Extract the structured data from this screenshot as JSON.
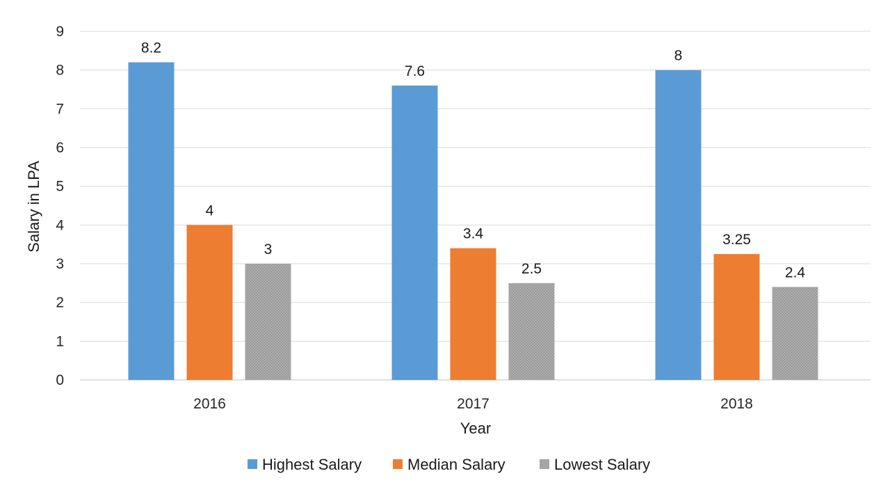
{
  "chart_data": {
    "type": "bar",
    "categories": [
      "2016",
      "2017",
      "2018"
    ],
    "series": [
      {
        "name": "Highest Salary",
        "values": [
          8.2,
          7.6,
          8
        ],
        "labels": [
          "8.2",
          "7.6",
          "8"
        ],
        "color": "#5b9bd5"
      },
      {
        "name": "Median Salary",
        "values": [
          4,
          3.4,
          3.25
        ],
        "labels": [
          "4",
          "3.4",
          "3.25"
        ],
        "color": "#ed7d31"
      },
      {
        "name": "Lowest Salary",
        "values": [
          3,
          2.5,
          2.4
        ],
        "labels": [
          "3",
          "2.5",
          "2.4"
        ],
        "color": "#a5a5a5"
      }
    ],
    "xlabel": "Year",
    "ylabel": "Salary in LPA",
    "ylim": [
      0,
      9
    ],
    "yticks": [
      "0",
      "1",
      "2",
      "3",
      "4",
      "5",
      "6",
      "7",
      "8",
      "9"
    ],
    "grid": true,
    "legend_position": "bottom",
    "lowest_series_pattern": "dotted-texture"
  }
}
